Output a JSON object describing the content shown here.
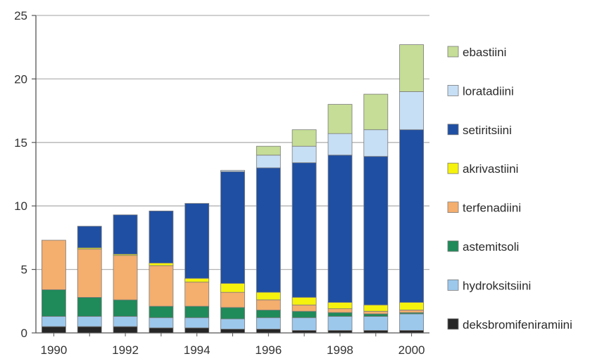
{
  "chart_data": {
    "type": "bar",
    "stacked": true,
    "title": "",
    "xlabel": "",
    "ylabel": "",
    "ylim": [
      0,
      25
    ],
    "yticks": [
      0,
      5,
      10,
      15,
      20,
      25
    ],
    "grid": "horizontal",
    "legend_position": "right",
    "categories": [
      "1990",
      "1991",
      "1992",
      "1993",
      "1994",
      "1995",
      "1996",
      "1997",
      "1998",
      "1999",
      "2000"
    ],
    "xtick_labels": [
      "1990",
      "",
      "1992",
      "",
      "1994",
      "",
      "1996",
      "",
      "1998",
      "",
      "2000"
    ],
    "series": [
      {
        "name": "deksbromifeniramiini",
        "color": "#262626",
        "values": [
          0.5,
          0.5,
          0.5,
          0.4,
          0.4,
          0.3,
          0.3,
          0.2,
          0.2,
          0.2,
          0.2
        ]
      },
      {
        "name": "hydroksitsiini",
        "color": "#9cc8ec",
        "values": [
          0.8,
          0.8,
          0.8,
          0.8,
          0.8,
          0.8,
          0.9,
          1.0,
          1.1,
          1.1,
          1.3
        ]
      },
      {
        "name": "astemitsoli",
        "color": "#1f8a5a",
        "values": [
          2.1,
          1.5,
          1.3,
          0.9,
          0.9,
          0.9,
          0.6,
          0.5,
          0.3,
          0.2,
          0.1
        ]
      },
      {
        "name": "terfenadiini",
        "color": "#f4ae6e",
        "values": [
          3.9,
          3.8,
          3.5,
          3.2,
          1.9,
          1.2,
          0.8,
          0.5,
          0.3,
          0.2,
          0.2
        ]
      },
      {
        "name": "akrivastiini",
        "color": "#f5f20e",
        "values": [
          0,
          0.1,
          0.1,
          0.2,
          0.3,
          0.7,
          0.6,
          0.6,
          0.5,
          0.5,
          0.6
        ]
      },
      {
        "name": "setiritsiini",
        "color": "#1f4fa3",
        "values": [
          0,
          1.7,
          3.1,
          4.1,
          5.9,
          8.8,
          9.8,
          10.6,
          11.6,
          11.7,
          13.6
        ]
      },
      {
        "name": "loratadiini",
        "color": "#c7dff5",
        "values": [
          0,
          0,
          0,
          0,
          0,
          0.1,
          1.0,
          1.3,
          1.7,
          2.1,
          3.0
        ]
      },
      {
        "name": "ebastiini",
        "color": "#c5dd96",
        "values": [
          0,
          0,
          0,
          0,
          0,
          0,
          0.7,
          1.3,
          2.3,
          2.8,
          3.7
        ]
      }
    ]
  }
}
